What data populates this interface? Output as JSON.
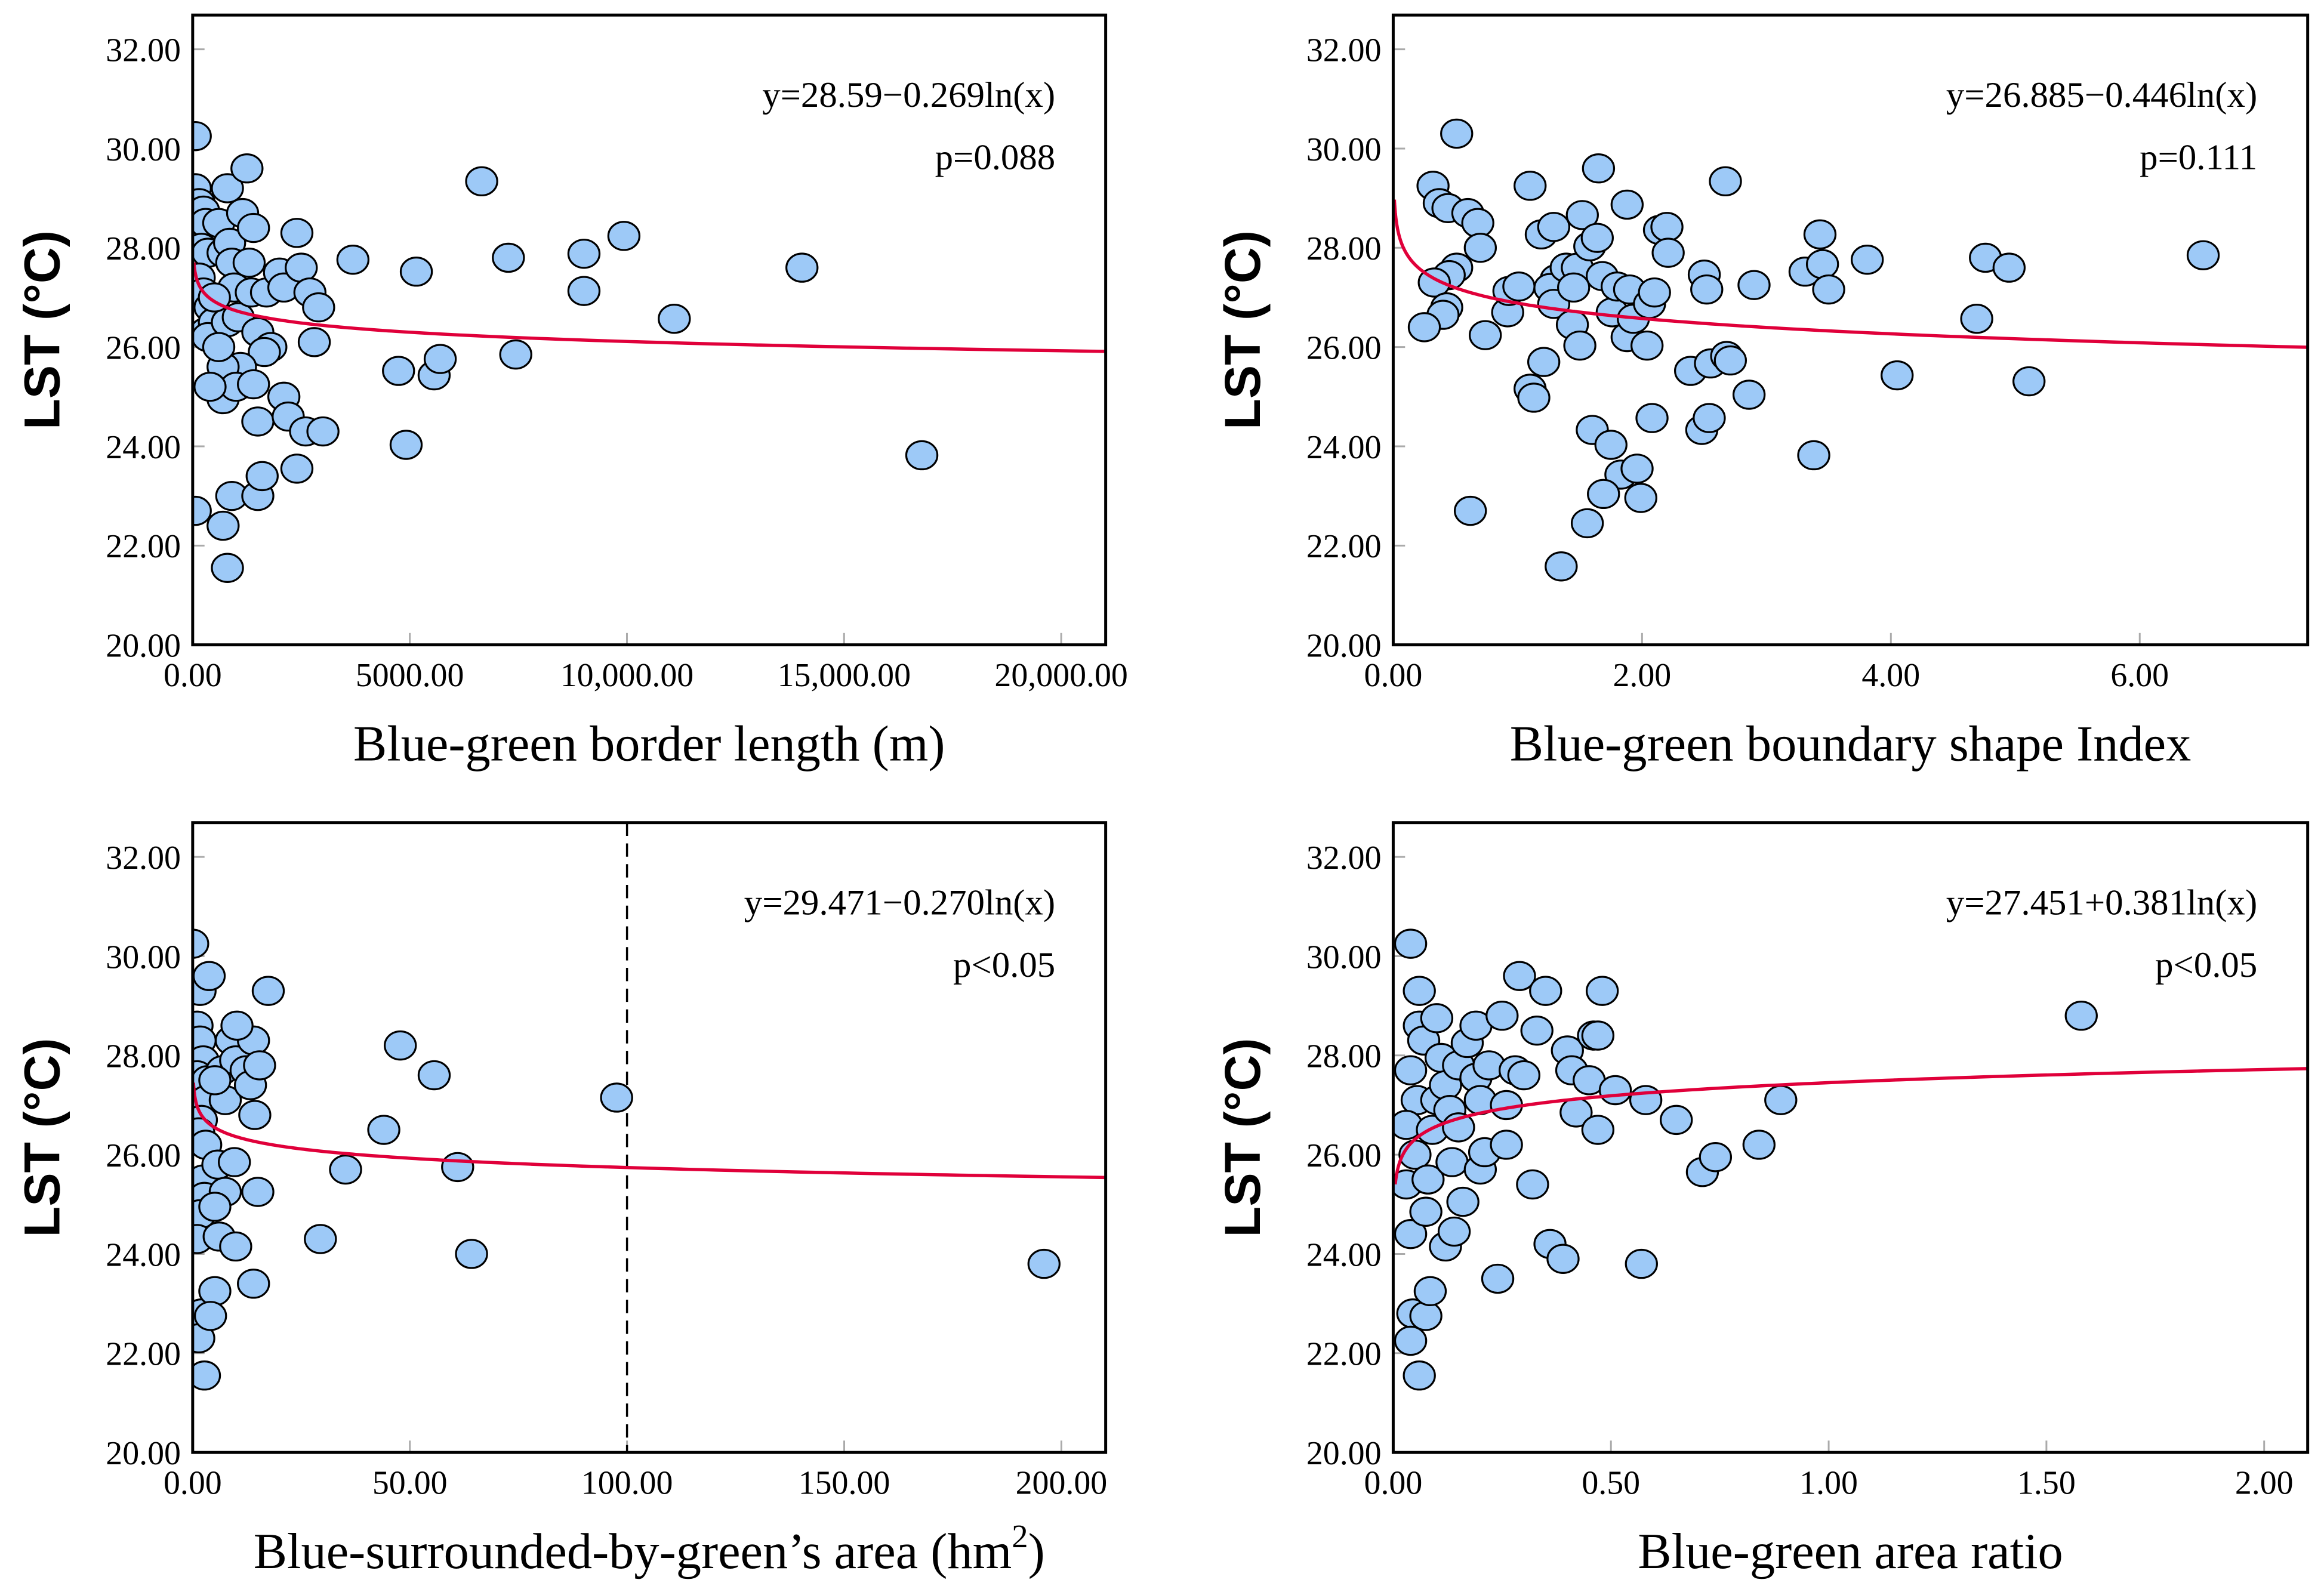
{
  "chart_data": [
    {
      "type": "scatter",
      "id": "p1",
      "xlabel": "Blue-green border length (m)",
      "ylabel": "LST (°C)",
      "xlim": [
        0,
        21024
      ],
      "ylim": [
        20,
        32.69
      ],
      "xticks": [
        0,
        5000,
        10000,
        15000,
        20000
      ],
      "xtick_labels": [
        "0.00",
        "5000.00",
        "10,000.00",
        "15,000.00",
        "20,000.00"
      ],
      "yticks": [
        20,
        22,
        24,
        26,
        28,
        30,
        32
      ],
      "ytick_labels": [
        "20.00",
        "22.00",
        "24.00",
        "26.00",
        "28.00",
        "30.00",
        "32.00"
      ],
      "equation": "y=28.59−0.269ln(x)",
      "p_value": "p=0.088",
      "fit": {
        "a": 28.59,
        "b": -0.269,
        "x_multiplier": 1,
        "x_start": 30
      },
      "points": [
        [
          60,
          30.25
        ],
        [
          60,
          29.2
        ],
        [
          150,
          28.9
        ],
        [
          250,
          28.75
        ],
        [
          300,
          28.5
        ],
        [
          200,
          28.0
        ],
        [
          350,
          27.9
        ],
        [
          150,
          27.4
        ],
        [
          250,
          27.1
        ],
        [
          400,
          26.8
        ],
        [
          300,
          26.3
        ],
        [
          500,
          26.5
        ],
        [
          350,
          26.2
        ],
        [
          600,
          28.5
        ],
        [
          700,
          27.9
        ],
        [
          800,
          29.2
        ],
        [
          850,
          28.1
        ],
        [
          900,
          27.7
        ],
        [
          950,
          27.2
        ],
        [
          800,
          26.5
        ],
        [
          1050,
          26.6
        ],
        [
          1150,
          28.7
        ],
        [
          1250,
          29.6
        ],
        [
          1300,
          27.7
        ],
        [
          1400,
          28.4
        ],
        [
          1350,
          27.1
        ],
        [
          1500,
          26.3
        ],
        [
          1700,
          27.1
        ],
        [
          1800,
          26.0
        ],
        [
          1650,
          25.9
        ],
        [
          1100,
          25.6
        ],
        [
          700,
          25.6
        ],
        [
          700,
          24.95
        ],
        [
          1000,
          25.2
        ],
        [
          1400,
          25.25
        ],
        [
          1500,
          24.5
        ],
        [
          60,
          22.7
        ],
        [
          700,
          22.4
        ],
        [
          800,
          21.55
        ],
        [
          900,
          23.0
        ],
        [
          1500,
          23.0
        ],
        [
          1600,
          23.4
        ],
        [
          2000,
          27.5
        ],
        [
          2100,
          27.2
        ],
        [
          2400,
          28.3
        ],
        [
          2500,
          27.6
        ],
        [
          2700,
          27.1
        ],
        [
          2800,
          26.1
        ],
        [
          2900,
          26.8
        ],
        [
          2100,
          25.0
        ],
        [
          2200,
          24.6
        ],
        [
          2600,
          24.3
        ],
        [
          2400,
          23.55
        ],
        [
          3000,
          24.3
        ],
        [
          3690,
          27.76
        ],
        [
          4740,
          25.52
        ],
        [
          4915,
          24.03
        ],
        [
          5150,
          27.52
        ],
        [
          5560,
          25.43
        ],
        [
          5700,
          25.76
        ],
        [
          6655,
          29.34
        ],
        [
          7270,
          27.8
        ],
        [
          7440,
          25.85
        ],
        [
          9010,
          27.88
        ],
        [
          9010,
          27.13
        ],
        [
          9930,
          28.24
        ],
        [
          11090,
          26.57
        ],
        [
          14030,
          27.6
        ],
        [
          16790,
          23.82
        ],
        [
          500,
          27.0
        ],
        [
          600,
          26.0
        ],
        [
          400,
          25.2
        ]
      ]
    },
    {
      "type": "scatter",
      "id": "p2",
      "xlabel": "Blue-green boundary shape Index",
      "ylabel": "LST (°C)",
      "xlim": [
        0,
        7.35
      ],
      "ylim": [
        20,
        32.69
      ],
      "xticks": [
        0,
        2,
        4,
        6
      ],
      "xtick_labels": [
        "0.00",
        "2.00",
        "4.00",
        "6.00"
      ],
      "yticks": [
        20,
        22,
        24,
        26,
        28,
        30,
        32
      ],
      "ytick_labels": [
        "20.00",
        "22.00",
        "24.00",
        "26.00",
        "28.00",
        "30.00",
        "32.00"
      ],
      "equation": "y=26.885−0.446ln(x)",
      "p_value": "p=0.111",
      "fit": {
        "a": 26.885,
        "b": -0.446,
        "x_multiplier": 1,
        "x_start": 0.01
      },
      "points": [
        [
          0.51,
          30.3
        ],
        [
          0.32,
          29.25
        ],
        [
          0.37,
          28.9
        ],
        [
          0.44,
          28.8
        ],
        [
          0.6,
          28.7
        ],
        [
          0.68,
          28.5
        ],
        [
          0.7,
          28.0
        ],
        [
          0.51,
          27.6
        ],
        [
          0.45,
          27.45
        ],
        [
          0.33,
          27.3
        ],
        [
          0.43,
          26.8
        ],
        [
          0.4,
          26.65
        ],
        [
          0.25,
          26.4
        ],
        [
          0.74,
          26.24
        ],
        [
          0.92,
          26.7
        ],
        [
          0.93,
          27.13
        ],
        [
          1.01,
          27.22
        ],
        [
          0.62,
          22.7
        ],
        [
          1.1,
          29.25
        ],
        [
          1.19,
          28.27
        ],
        [
          1.29,
          28.42
        ],
        [
          1.31,
          27.37
        ],
        [
          1.26,
          27.19
        ],
        [
          1.29,
          26.87
        ],
        [
          1.21,
          25.7
        ],
        [
          1.1,
          25.16
        ],
        [
          1.13,
          24.98
        ],
        [
          1.39,
          27.6
        ],
        [
          1.48,
          27.6
        ],
        [
          1.45,
          27.2
        ],
        [
          1.44,
          26.45
        ],
        [
          1.5,
          26.03
        ],
        [
          1.52,
          28.66
        ],
        [
          1.58,
          28.03
        ],
        [
          1.64,
          28.2
        ],
        [
          1.65,
          29.6
        ],
        [
          1.68,
          27.43
        ],
        [
          1.76,
          26.7
        ],
        [
          1.8,
          27.22
        ],
        [
          1.88,
          28.87
        ],
        [
          1.9,
          27.16
        ],
        [
          1.88,
          26.2
        ],
        [
          1.93,
          26.57
        ],
        [
          2.04,
          26.03
        ],
        [
          2.06,
          26.87
        ],
        [
          2.1,
          27.1
        ],
        [
          2.14,
          28.36
        ],
        [
          2.2,
          28.42
        ],
        [
          2.21,
          27.9
        ],
        [
          2.08,
          24.57
        ],
        [
          1.6,
          24.33
        ],
        [
          1.75,
          24.03
        ],
        [
          1.83,
          23.43
        ],
        [
          1.96,
          23.55
        ],
        [
          1.69,
          23.04
        ],
        [
          1.99,
          22.96
        ],
        [
          1.56,
          22.45
        ],
        [
          1.35,
          21.58
        ],
        [
          2.39,
          25.52
        ],
        [
          2.5,
          27.46
        ],
        [
          2.52,
          27.16
        ],
        [
          2.55,
          25.67
        ],
        [
          2.48,
          24.33
        ],
        [
          2.54,
          24.57
        ],
        [
          2.68,
          25.82
        ],
        [
          2.71,
          25.73
        ],
        [
          2.67,
          29.34
        ],
        [
          2.86,
          25.04
        ],
        [
          2.9,
          27.25
        ],
        [
          3.31,
          27.52
        ],
        [
          3.43,
          28.27
        ],
        [
          3.45,
          27.67
        ],
        [
          3.5,
          27.16
        ],
        [
          3.38,
          23.82
        ],
        [
          3.81,
          27.76
        ],
        [
          4.05,
          25.43
        ],
        [
          4.69,
          26.57
        ],
        [
          4.76,
          27.8
        ],
        [
          4.95,
          27.6
        ],
        [
          5.11,
          25.31
        ],
        [
          6.51,
          27.85
        ]
      ]
    },
    {
      "type": "scatter",
      "id": "p3",
      "xlabel": "Blue-surrounded-by-green’s area (hm",
      "xlabel_sup": "2",
      "xlabel_end": ")",
      "ylabel": "LST (°C)",
      "xlim": [
        0,
        210.2
      ],
      "ylim": [
        20,
        32.69
      ],
      "xticks": [
        0,
        50,
        100,
        150,
        200
      ],
      "xtick_labels": [
        "0.00",
        "50.00",
        "100.00",
        "150.00",
        "200.00"
      ],
      "yticks": [
        20,
        22,
        24,
        26,
        28,
        30,
        32
      ],
      "ytick_labels": [
        "20.00",
        "22.00",
        "24.00",
        "26.00",
        "28.00",
        "30.00",
        "32.00"
      ],
      "equation": "y=29.471−0.270ln(x)",
      "p_value": "p<0.05",
      "reference_line_x": 100,
      "fit": {
        "a": 29.471,
        "b": -0.27,
        "x_multiplier": 10000,
        "x_start": 0.2
      },
      "points": [
        [
          0,
          30.25
        ],
        [
          1.7,
          29.3
        ],
        [
          3.8,
          29.6
        ],
        [
          1,
          28.6
        ],
        [
          1.7,
          28.3
        ],
        [
          2.4,
          27.9
        ],
        [
          1,
          27.6
        ],
        [
          3.4,
          27.5
        ],
        [
          3.1,
          27.1
        ],
        [
          2,
          26.7
        ],
        [
          1.4,
          26.45
        ],
        [
          3,
          26.2
        ],
        [
          2.4,
          25.5
        ],
        [
          2.7,
          25.15
        ],
        [
          1.7,
          24.8
        ],
        [
          1,
          24.3
        ],
        [
          2,
          22.8
        ],
        [
          1.4,
          22.3
        ],
        [
          2.7,
          21.55
        ],
        [
          6.8,
          27.7
        ],
        [
          8.9,
          28.3
        ],
        [
          9.9,
          27.9
        ],
        [
          7.5,
          27.1
        ],
        [
          5.1,
          27.5
        ],
        [
          5.8,
          25.8
        ],
        [
          9.6,
          25.85
        ],
        [
          7.5,
          25.25
        ],
        [
          5.1,
          24.95
        ],
        [
          6.1,
          24.35
        ],
        [
          9.9,
          24.15
        ],
        [
          5.1,
          23.25
        ],
        [
          4.1,
          22.75
        ],
        [
          14,
          28.3
        ],
        [
          12.3,
          27.7
        ],
        [
          13.3,
          27.4
        ],
        [
          14.3,
          26.8
        ],
        [
          15.4,
          27.8
        ],
        [
          15,
          25.25
        ],
        [
          14,
          23.4
        ],
        [
          17.4,
          29.3
        ],
        [
          10.2,
          28.6
        ],
        [
          47.8,
          28.2
        ],
        [
          44,
          26.5
        ],
        [
          55.6,
          27.6
        ],
        [
          35.2,
          25.7
        ],
        [
          29.4,
          24.3
        ],
        [
          61,
          25.75
        ],
        [
          64.2,
          24.0
        ],
        [
          97.6,
          27.15
        ],
        [
          196,
          23.8
        ]
      ]
    },
    {
      "type": "scatter",
      "id": "p4",
      "xlabel": "Blue-green area ratio",
      "ylabel": "LST (°C)",
      "xlim": [
        0,
        2.1
      ],
      "ylim": [
        20,
        32.69
      ],
      "xticks": [
        0,
        0.5,
        1,
        1.5,
        2
      ],
      "xtick_labels": [
        "0.00",
        "0.50",
        "1.00",
        "1.50",
        "2.00"
      ],
      "yticks": [
        20,
        22,
        24,
        26,
        28,
        30,
        32
      ],
      "ytick_labels": [
        "20.00",
        "22.00",
        "24.00",
        "26.00",
        "28.00",
        "30.00",
        "32.00"
      ],
      "equation": "y=27.451+0.381ln(x)",
      "p_value": "p<0.05",
      "fit": {
        "a": 27.451,
        "b": 0.381,
        "x_multiplier": 1,
        "x_start": 0.005
      },
      "points": [
        [
          0.04,
          30.25
        ],
        [
          0.06,
          29.3
        ],
        [
          0.06,
          28.6
        ],
        [
          0.07,
          28.3
        ],
        [
          0.1,
          28.75
        ],
        [
          0.04,
          27.7
        ],
        [
          0.055,
          27.1
        ],
        [
          0.03,
          26.6
        ],
        [
          0.05,
          26.0
        ],
        [
          0.03,
          25.4
        ],
        [
          0.04,
          24.4
        ],
        [
          0.045,
          22.8
        ],
        [
          0.04,
          22.25
        ],
        [
          0.06,
          21.55
        ],
        [
          0.075,
          22.75
        ],
        [
          0.085,
          23.25
        ],
        [
          0.08,
          25.5
        ],
        [
          0.075,
          24.85
        ],
        [
          0.09,
          26.5
        ],
        [
          0.1,
          27.1
        ],
        [
          0.11,
          27.95
        ],
        [
          0.12,
          27.4
        ],
        [
          0.13,
          26.9
        ],
        [
          0.12,
          24.15
        ],
        [
          0.14,
          24.45
        ],
        [
          0.135,
          25.85
        ],
        [
          0.15,
          26.55
        ],
        [
          0.16,
          25.05
        ],
        [
          0.15,
          27.8
        ],
        [
          0.17,
          28.25
        ],
        [
          0.19,
          28.6
        ],
        [
          0.19,
          27.55
        ],
        [
          0.2,
          27.1
        ],
        [
          0.2,
          25.7
        ],
        [
          0.21,
          26.05
        ],
        [
          0.22,
          27.8
        ],
        [
          0.25,
          28.8
        ],
        [
          0.26,
          26.2
        ],
        [
          0.26,
          27.0
        ],
        [
          0.24,
          23.5
        ],
        [
          0.28,
          27.7
        ],
        [
          0.29,
          29.6
        ],
        [
          0.3,
          27.6
        ],
        [
          0.32,
          25.4
        ],
        [
          0.35,
          29.3
        ],
        [
          0.33,
          28.5
        ],
        [
          0.36,
          24.2
        ],
        [
          0.39,
          23.9
        ],
        [
          0.4,
          28.1
        ],
        [
          0.41,
          27.7
        ],
        [
          0.42,
          26.85
        ],
        [
          0.45,
          27.5
        ],
        [
          0.46,
          28.4
        ],
        [
          0.47,
          28.4
        ],
        [
          0.48,
          29.3
        ],
        [
          0.47,
          26.5
        ],
        [
          0.51,
          27.3
        ],
        [
          0.58,
          27.1
        ],
        [
          0.57,
          23.8
        ],
        [
          0.65,
          26.7
        ],
        [
          0.71,
          25.65
        ],
        [
          0.74,
          25.95
        ],
        [
          0.84,
          26.2
        ],
        [
          0.89,
          27.1
        ],
        [
          1.58,
          28.8
        ]
      ]
    }
  ],
  "colors": {
    "point_fill": "#9dc9f7",
    "point_stroke": "#000000",
    "fit_line": "#e0003a"
  }
}
